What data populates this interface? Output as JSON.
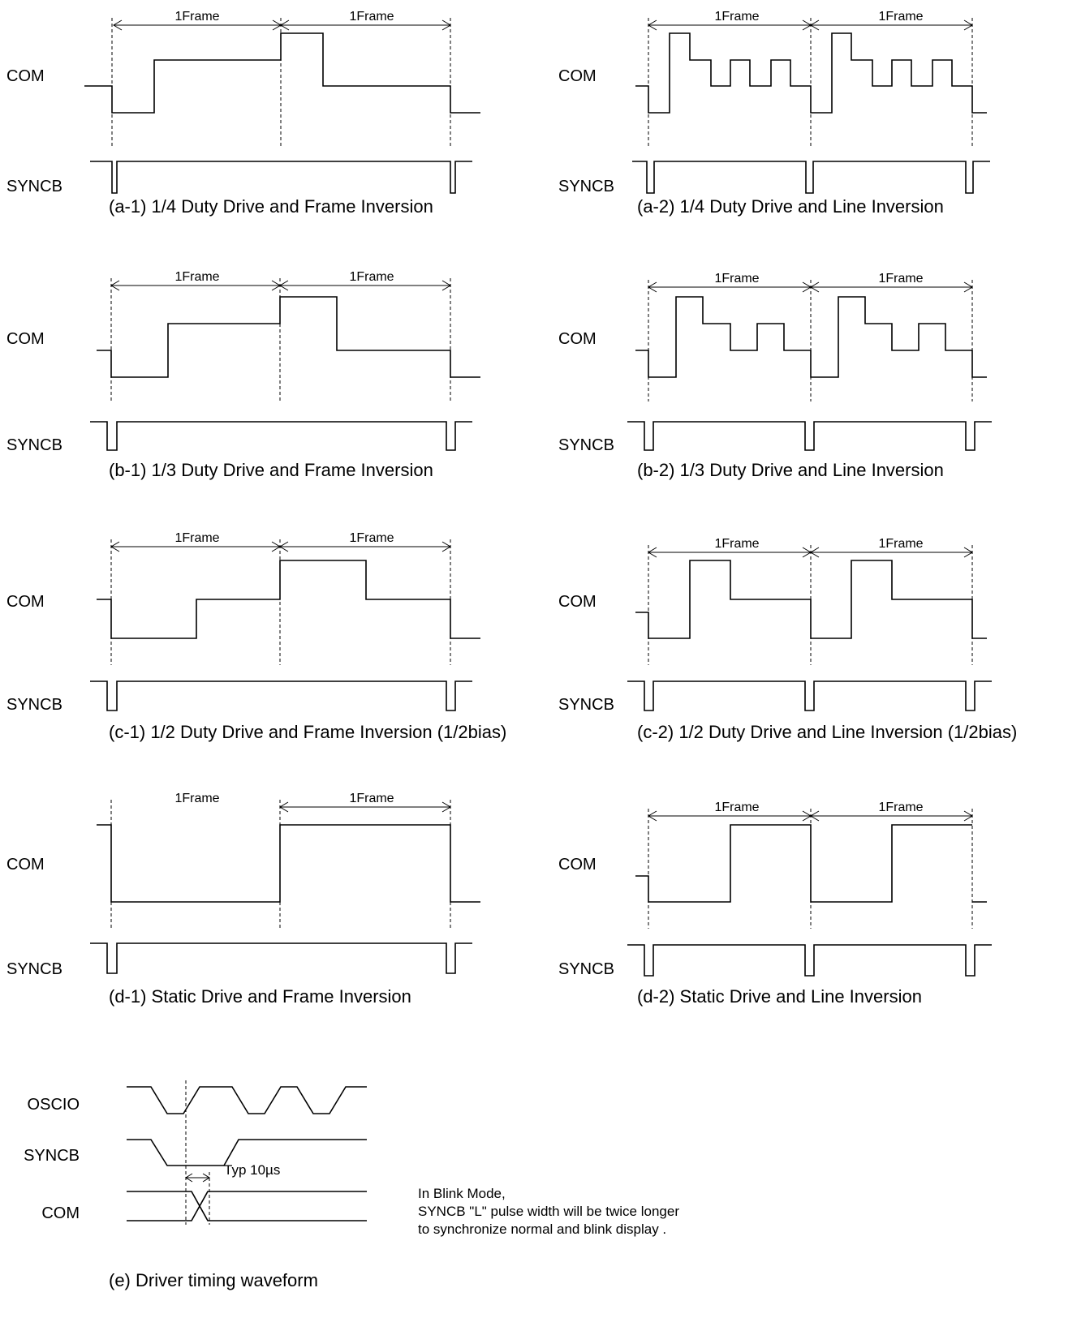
{
  "panels": [
    {
      "id": "a-1",
      "caption": "(a-1) 1/4 Duty Drive and Frame Inversion",
      "frame_label": "1Frame",
      "com_label": "COM",
      "syncb_label": "SYNCB"
    },
    {
      "id": "a-2",
      "caption": "(a-2) 1/4 Duty Drive and Line Inversion",
      "frame_label": "1Frame",
      "com_label": "COM",
      "syncb_label": "SYNCB"
    },
    {
      "id": "b-1",
      "caption": "(b-1) 1/3 Duty Drive and Frame Inversion",
      "frame_label": "1Frame",
      "com_label": "COM",
      "syncb_label": "SYNCB"
    },
    {
      "id": "b-2",
      "caption": "(b-2) 1/3 Duty Drive and Line Inversion",
      "frame_label": "1Frame",
      "com_label": "COM",
      "syncb_label": "SYNCB"
    },
    {
      "id": "c-1",
      "caption": "(c-1) 1/2 Duty Drive and Frame Inversion (1/2bias)",
      "frame_label": "1Frame",
      "com_label": "COM",
      "syncb_label": "SYNCB"
    },
    {
      "id": "c-2",
      "caption": "(c-2) 1/2 Duty Drive and Line Inversion (1/2bias)",
      "frame_label": "1Frame",
      "com_label": "COM",
      "syncb_label": "SYNCB"
    },
    {
      "id": "d-1",
      "caption": "(d-1) Static Drive and Frame Inversion",
      "frame_label": "1Frame",
      "com_label": "COM",
      "syncb_label": "SYNCB"
    },
    {
      "id": "d-2",
      "caption": "(d-2) Static Drive and Line Inversion",
      "frame_label": "1Frame",
      "com_label": "COM",
      "syncb_label": "SYNCB"
    }
  ],
  "timing": {
    "caption": "(e) Driver timing waveform",
    "oscio_label": "OSCIO",
    "syncb_label": "SYNCB",
    "com_label": "COM",
    "typ_label": "Typ 10µs"
  },
  "note": {
    "line1": "In Blink Mode,",
    "line2": "SYNCB \"L\" pulse width will be twice longer",
    "line3": "to synchronize normal and blink display ."
  }
}
